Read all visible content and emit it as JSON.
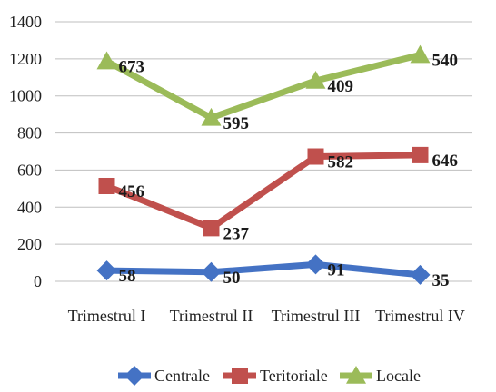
{
  "chart_data": {
    "type": "line",
    "title": "",
    "xlabel": "",
    "ylabel": "",
    "categories": [
      "Trimestrul I",
      "Trimestrul II",
      "Trimestrul III",
      "Trimestrul IV"
    ],
    "ylim": [
      0,
      1400
    ],
    "yticks": [
      "0",
      "200",
      "400",
      "600",
      "800",
      "1000",
      "1200",
      "1400"
    ],
    "grid": true,
    "legend_position": "bottom",
    "note": "Series are plotted stacked; data labels show each series' own value.",
    "series": [
      {
        "name": "Centrale",
        "color": "#4472C4",
        "marker": "diamond",
        "values": [
          58,
          50,
          91,
          35
        ],
        "labels": [
          "58",
          "50",
          "91",
          "35"
        ]
      },
      {
        "name": "Teritoriale",
        "color": "#C0504D",
        "marker": "square",
        "values": [
          456,
          237,
          582,
          646
        ],
        "labels": [
          "456",
          "237",
          "582",
          "646"
        ]
      },
      {
        "name": "Locale",
        "color": "#9BBB59",
        "marker": "triangle",
        "values": [
          673,
          595,
          409,
          540
        ],
        "labels": [
          "673",
          "595",
          "409",
          "540"
        ]
      }
    ]
  }
}
